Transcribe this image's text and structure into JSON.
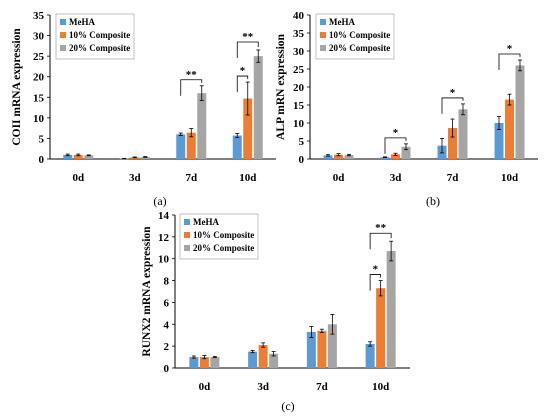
{
  "figure": {
    "legend": [
      "MeHA",
      "10% Composite",
      "20% Composite"
    ],
    "colors": [
      "#5b9bd5",
      "#ed7d31",
      "#a5a5a5"
    ]
  },
  "chart_data": [
    {
      "type": "bar",
      "panel_label": "(a)",
      "ylabel": "COII mRNA expression",
      "categories": [
        "0d",
        "3d",
        "7d",
        "10d"
      ],
      "ylim": [
        0,
        35
      ],
      "yticks": [
        0,
        5,
        10,
        15,
        20,
        25,
        30,
        35
      ],
      "legend_placement": "top-left",
      "series": [
        {
          "name": "MeHA",
          "values": [
            1.0,
            0.1,
            6.0,
            5.7
          ],
          "errors": [
            0.2,
            0.05,
            0.3,
            0.5
          ]
        },
        {
          "name": "10% Composite",
          "values": [
            1.0,
            0.4,
            6.4,
            14.7
          ],
          "errors": [
            0.2,
            0.1,
            1.0,
            4.0
          ]
        },
        {
          "name": "20% Composite",
          "values": [
            0.9,
            0.5,
            16.0,
            25.0
          ],
          "errors": [
            0.1,
            0.1,
            1.8,
            1.5
          ]
        }
      ],
      "annotations": [
        {
          "category": 2,
          "from": 0,
          "to": 2,
          "text": "**"
        },
        {
          "category": 3,
          "from": 0,
          "to": 1,
          "text": "*"
        },
        {
          "category": 3,
          "from": 0,
          "to": 2,
          "text": "**"
        }
      ]
    },
    {
      "type": "bar",
      "panel_label": "(b)",
      "ylabel": "ALP mRN expression",
      "categories": [
        "0d",
        "3d",
        "7d",
        "10d"
      ],
      "ylim": [
        0,
        40
      ],
      "yticks": [
        0,
        5,
        10,
        15,
        20,
        25,
        30,
        35,
        40
      ],
      "legend_placement": "top-left",
      "series": [
        {
          "name": "MeHA",
          "values": [
            1.0,
            0.5,
            3.7,
            10.0
          ],
          "errors": [
            0.2,
            0.1,
            2.0,
            1.8
          ]
        },
        {
          "name": "10% Composite",
          "values": [
            1.2,
            1.3,
            8.6,
            16.5
          ],
          "errors": [
            0.3,
            0.3,
            2.5,
            1.5
          ]
        },
        {
          "name": "20% Composite",
          "values": [
            1.1,
            3.4,
            13.8,
            26.0
          ],
          "errors": [
            0.2,
            0.8,
            1.5,
            1.5
          ]
        }
      ],
      "annotations": [
        {
          "category": 1,
          "from": 0,
          "to": 2,
          "text": "*"
        },
        {
          "category": 2,
          "from": 0,
          "to": 2,
          "text": "*"
        },
        {
          "category": 3,
          "from": 0,
          "to": 2,
          "text": "*"
        }
      ]
    },
    {
      "type": "bar",
      "panel_label": "(c)",
      "ylabel": "RUNX2 mRNA expression",
      "categories": [
        "0d",
        "3d",
        "7d",
        "10d"
      ],
      "ylim": [
        0,
        14
      ],
      "yticks": [
        0,
        2,
        4,
        6,
        8,
        10,
        12,
        14
      ],
      "legend_placement": "top-left",
      "series": [
        {
          "name": "MeHA",
          "values": [
            1.0,
            1.5,
            3.3,
            2.2
          ],
          "errors": [
            0.1,
            0.1,
            0.5,
            0.2
          ]
        },
        {
          "name": "10% Composite",
          "values": [
            1.0,
            2.1,
            3.4,
            7.3
          ],
          "errors": [
            0.15,
            0.2,
            0.15,
            0.7
          ]
        },
        {
          "name": "20% Composite",
          "values": [
            1.0,
            1.3,
            4.0,
            10.7
          ],
          "errors": [
            0.05,
            0.2,
            0.9,
            0.9
          ]
        }
      ],
      "annotations": [
        {
          "category": 3,
          "from": 0,
          "to": 1,
          "text": "*"
        },
        {
          "category": 3,
          "from": 0,
          "to": 2,
          "text": "**"
        }
      ]
    }
  ]
}
